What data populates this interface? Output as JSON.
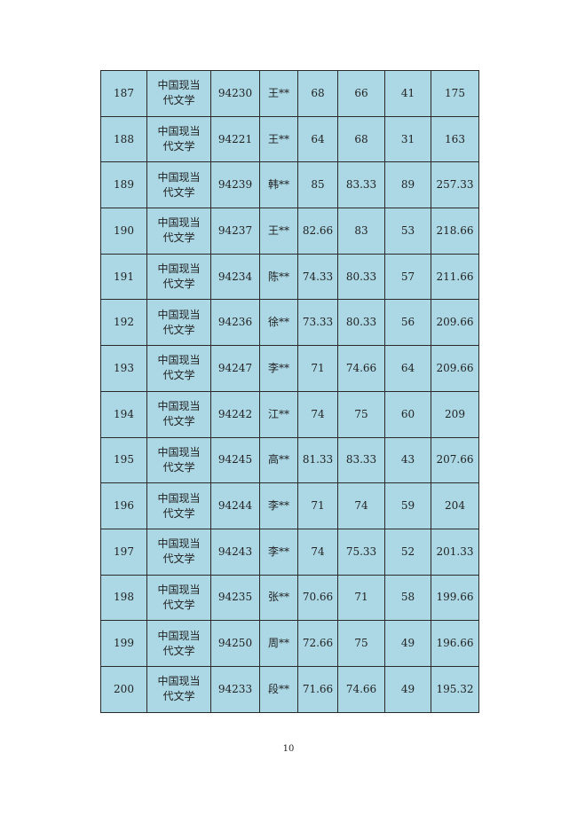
{
  "table": {
    "rows": [
      [
        "187",
        "中国现当代文学",
        "94230",
        "王**",
        "68",
        "66",
        "41",
        "175"
      ],
      [
        "188",
        "中国现当代文学",
        "94221",
        "王**",
        "64",
        "68",
        "31",
        "163"
      ],
      [
        "189",
        "中国现当代文学",
        "94239",
        "韩**",
        "85",
        "83.33",
        "89",
        "257.33"
      ],
      [
        "190",
        "中国现当代文学",
        "94237",
        "王**",
        "82.66",
        "83",
        "53",
        "218.66"
      ],
      [
        "191",
        "中国现当代文学",
        "94234",
        "陈**",
        "74.33",
        "80.33",
        "57",
        "211.66"
      ],
      [
        "192",
        "中国现当代文学",
        "94236",
        "徐**",
        "73.33",
        "80.33",
        "56",
        "209.66"
      ],
      [
        "193",
        "中国现当代文学",
        "94247",
        "李**",
        "71",
        "74.66",
        "64",
        "209.66"
      ],
      [
        "194",
        "中国现当代文学",
        "94242",
        "江**",
        "74",
        "75",
        "60",
        "209"
      ],
      [
        "195",
        "中国现当代文学",
        "94245",
        "高**",
        "81.33",
        "83.33",
        "43",
        "207.66"
      ],
      [
        "196",
        "中国现当代文学",
        "94244",
        "李**",
        "71",
        "74",
        "59",
        "204"
      ],
      [
        "197",
        "中国现当代文学",
        "94243",
        "李**",
        "74",
        "75.33",
        "52",
        "201.33"
      ],
      [
        "198",
        "中国现当代文学",
        "94235",
        "张**",
        "70.66",
        "71",
        "58",
        "199.66"
      ],
      [
        "199",
        "中国现当代文学",
        "94250",
        "周**",
        "72.66",
        "75",
        "49",
        "196.66"
      ],
      [
        "200",
        "中国现当代文学",
        "94233",
        "段**",
        "71.66",
        "74.66",
        "49",
        "195.32"
      ]
    ],
    "background_color": "#acd8e5"
  },
  "page_number": "10"
}
